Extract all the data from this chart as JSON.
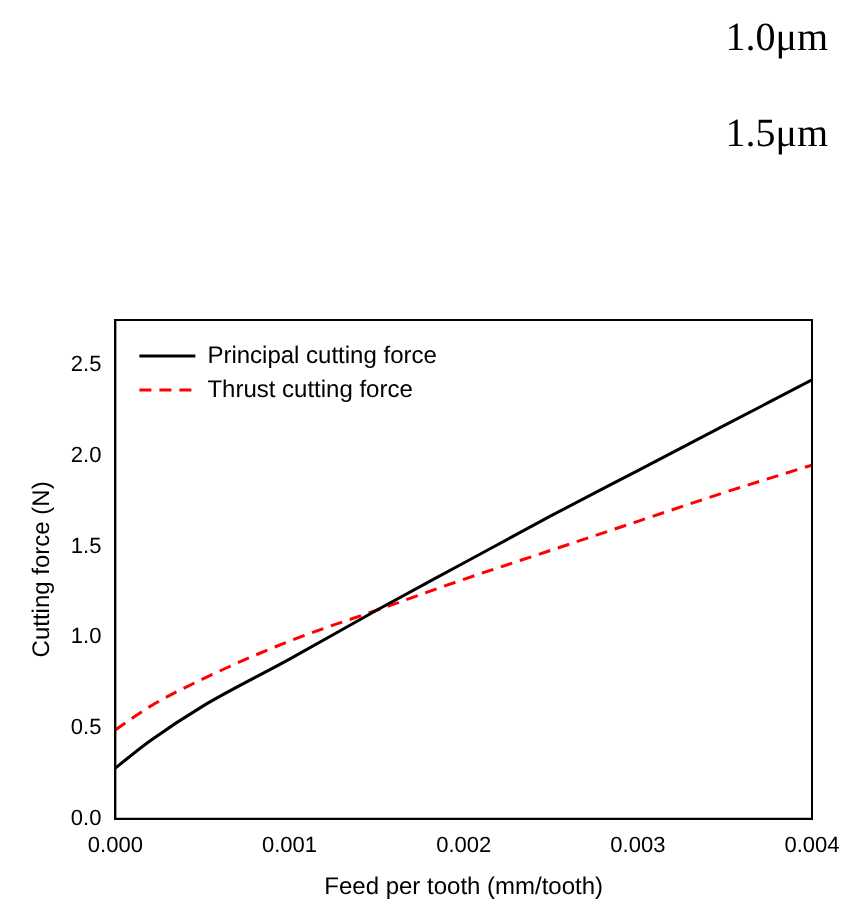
{
  "chart_data": {
    "type": "line",
    "xlabel": "Feed per tooth (mm/tooth)",
    "ylabel": "Cutting force (N)",
    "annotations": [
      "1.0μm",
      "1.5μm"
    ],
    "xlim": [
      0,
      0.004
    ],
    "xticks": [
      {
        "value": 0,
        "label": "0.000"
      },
      {
        "value": 0.001,
        "label": "0.001"
      },
      {
        "value": 0.002,
        "label": "0.002"
      },
      {
        "value": 0.003,
        "label": "0.003"
      },
      {
        "value": 0.004,
        "label": "0.004"
      }
    ],
    "ylim": [
      0,
      2.75
    ],
    "yticks": [
      {
        "value": 0,
        "label": "0.0"
      },
      {
        "value": 0.5,
        "label": "0.5"
      },
      {
        "value": 1,
        "label": "1.0"
      },
      {
        "value": 1.5,
        "label": "1.5"
      },
      {
        "value": 2,
        "label": "2.0"
      },
      {
        "value": 2.5,
        "label": "2.5"
      }
    ],
    "grid": false,
    "legend": "top left",
    "marker": "none",
    "series": [
      {
        "name": "Principal cutting force",
        "color": "#000000",
        "line_style": "solid",
        "x": [
          0,
          0.0002,
          0.0005,
          0.001,
          0.0015,
          0.002,
          0.0025,
          0.003,
          0.0035,
          0.004
        ],
        "values": [
          0.28,
          0.43,
          0.62,
          0.88,
          1.15,
          1.41,
          1.67,
          1.92,
          2.17,
          2.42
        ]
      },
      {
        "name": "Thrust cutting force",
        "color": "#ff0000",
        "line_style": "dashed",
        "x": [
          0,
          0.0002,
          0.0005,
          0.001,
          0.0015,
          0.002,
          0.0025,
          0.003,
          0.0035,
          0.004
        ],
        "values": [
          0.49,
          0.62,
          0.77,
          0.98,
          1.15,
          1.32,
          1.48,
          1.64,
          1.8,
          1.95
        ]
      }
    ]
  }
}
